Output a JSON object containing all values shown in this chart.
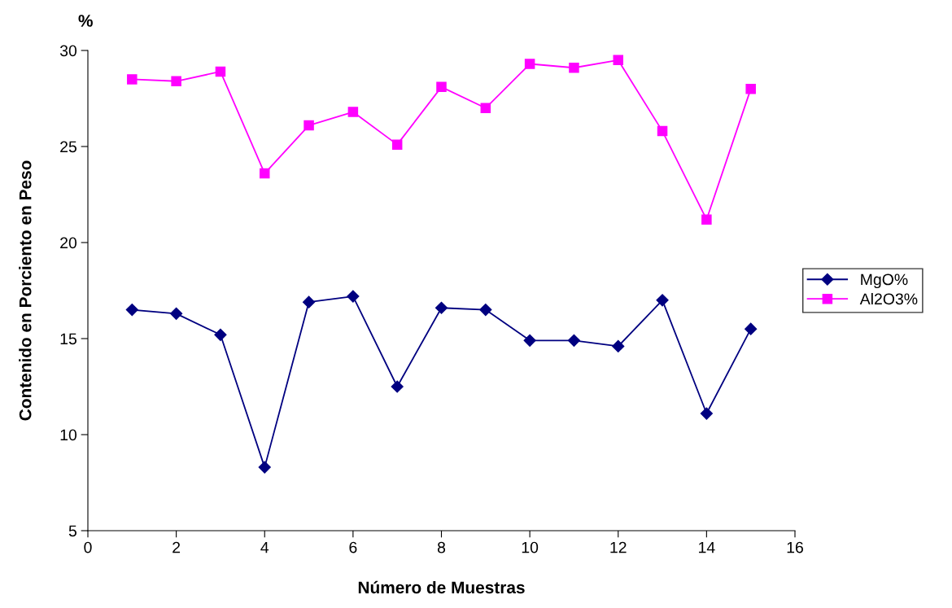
{
  "chart_data": {
    "type": "line",
    "xlabel": "Número de Muestras",
    "ylabel": "Contenido en Porciento en Peso",
    "annotations": [
      "%"
    ],
    "x": [
      1,
      2,
      3,
      4,
      5,
      6,
      7,
      8,
      9,
      10,
      11,
      12,
      13,
      14,
      15
    ],
    "series": [
      {
        "name": "MgO%",
        "color": "#000080",
        "marker": "diamond",
        "values": [
          16.5,
          16.3,
          15.2,
          8.3,
          16.9,
          17.2,
          12.5,
          16.6,
          16.5,
          14.9,
          14.9,
          14.6,
          17.0,
          11.1,
          15.5
        ]
      },
      {
        "name": "Al2O3%",
        "color": "#ff00ff",
        "marker": "square",
        "values": [
          28.5,
          28.4,
          28.9,
          23.6,
          26.1,
          26.8,
          25.1,
          28.1,
          27.0,
          29.3,
          29.1,
          29.5,
          25.8,
          21.2,
          28.0
        ]
      }
    ],
    "xlim": [
      0,
      16
    ],
    "xticks": [
      0,
      2,
      4,
      6,
      8,
      10,
      12,
      14,
      16
    ],
    "ylim": [
      5,
      30
    ],
    "yticks": [
      5,
      10,
      15,
      20,
      25,
      30
    ],
    "grid": false,
    "legend": "right",
    "line_style": "solid"
  }
}
